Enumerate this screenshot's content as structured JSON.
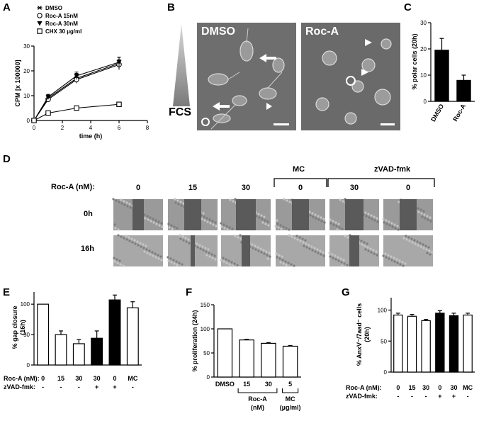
{
  "panel_letters": [
    "A",
    "B",
    "C",
    "D",
    "E",
    "F",
    "G"
  ],
  "panel_b": {
    "gradient_label": "FCS",
    "image_labels": [
      "DMSO",
      "Roc-A"
    ]
  },
  "panel_d": {
    "row_header": "Roc-A (nM):",
    "column_labels": [
      "0",
      "15",
      "30",
      "0",
      "30",
      "0"
    ],
    "group_labels": [
      "MC",
      "zVAD-fmk"
    ],
    "row_labels": [
      "0h",
      "16h"
    ]
  },
  "chart_data": [
    {
      "panel": "A",
      "type": "line",
      "xlabel": "time (h)",
      "ylabel": "CPM [x 100000]",
      "xlim": [
        0,
        8
      ],
      "ylim": [
        0,
        30
      ],
      "xticks": [
        "0",
        "2",
        "4",
        "6",
        "8"
      ],
      "yticks": [
        "0",
        "10",
        "20",
        "30"
      ],
      "grid": false,
      "legend_position": "top-left",
      "x": [
        0,
        1,
        3,
        6
      ],
      "series": [
        {
          "name": "DMSO",
          "marker": "asterisk",
          "values": [
            0,
            9,
            17,
            23
          ],
          "errors": [
            0,
            1.5,
            2,
            2.5
          ]
        },
        {
          "name": "Roc-A 15nM",
          "marker": "open-circle",
          "values": [
            0,
            8.5,
            16.5,
            22.5
          ],
          "errors": [
            0,
            1,
            1.5,
            2
          ]
        },
        {
          "name": "Roc-A 30nM",
          "marker": "filled-triangle-down",
          "values": [
            0,
            9.5,
            18,
            23.5
          ],
          "errors": [
            0,
            1,
            1.5,
            2
          ]
        },
        {
          "name": "CHX 30 µg/ml",
          "marker": "open-square",
          "values": [
            0,
            3,
            5,
            6.5
          ],
          "errors": [
            0,
            0.3,
            0.4,
            0.5
          ]
        }
      ]
    },
    {
      "panel": "C",
      "type": "bar",
      "ylabel": "% polar cells (20h)",
      "ylim": [
        0,
        30
      ],
      "yticks": [
        "0",
        "10",
        "20",
        "30"
      ],
      "categories": [
        "DMSO",
        "Roc-A"
      ],
      "values": [
        19.5,
        8
      ],
      "errors": [
        4.5,
        2
      ],
      "fills": [
        "#000000",
        "#000000"
      ]
    },
    {
      "panel": "E",
      "type": "bar",
      "ylabel": "% gap closure (16h)",
      "ylim": [
        0,
        120
      ],
      "yticks": [
        "0",
        "50",
        "100"
      ],
      "categories": [
        "0",
        "15",
        "30",
        "30",
        "0",
        "MC"
      ],
      "values": [
        100,
        50,
        35,
        44,
        107,
        94
      ],
      "errors": [
        0,
        6,
        7,
        12,
        8,
        10
      ],
      "fills": [
        "#ffffff",
        "#ffffff",
        "#ffffff",
        "#000000",
        "#000000",
        "#ffffff"
      ],
      "row_headers": [
        "Roc-A (nM):",
        "zVAD-fmk:"
      ],
      "roc_a_row": [
        "0",
        "15",
        "30",
        "30",
        "0",
        "MC"
      ],
      "zvad_row": [
        "-",
        "-",
        "-",
        "+",
        "+",
        "-"
      ]
    },
    {
      "panel": "F",
      "type": "bar",
      "ylabel": "% proliferation (24h)",
      "ylim": [
        0,
        150
      ],
      "yticks": [
        "0",
        "50",
        "100",
        "150"
      ],
      "categories": [
        "DMSO",
        "15",
        "30",
        "5"
      ],
      "values": [
        100,
        77,
        70,
        64
      ],
      "errors": [
        0,
        1.5,
        1.5,
        1.5
      ],
      "fills": [
        "#ffffff",
        "#ffffff",
        "#ffffff",
        "#ffffff"
      ],
      "group_labels": [
        {
          "line1": "Roc-A",
          "line2": "(nM)"
        },
        {
          "line1": "MC",
          "line2": "(µg/ml)"
        }
      ]
    },
    {
      "panel": "G",
      "type": "bar",
      "ylabel": "% AnxV⁻/7aad⁻ cells (20h)",
      "ylim": [
        0,
        120
      ],
      "yticks": [
        "0",
        "50",
        "100"
      ],
      "categories": [
        "0",
        "15",
        "30",
        "0",
        "30",
        "MC"
      ],
      "values": [
        92,
        90,
        83,
        95,
        91,
        92
      ],
      "errors": [
        3,
        3,
        2,
        4,
        4,
        3
      ],
      "fills": [
        "#ffffff",
        "#ffffff",
        "#ffffff",
        "#000000",
        "#000000",
        "#ffffff"
      ],
      "row_headers": [
        "Roc-A (nM):",
        "zVAD-fmk:"
      ],
      "roc_a_row": [
        "0",
        "15",
        "30",
        "0",
        "30",
        "MC"
      ],
      "zvad_row": [
        "-",
        "-",
        "-",
        "+",
        "+",
        "-"
      ]
    }
  ]
}
